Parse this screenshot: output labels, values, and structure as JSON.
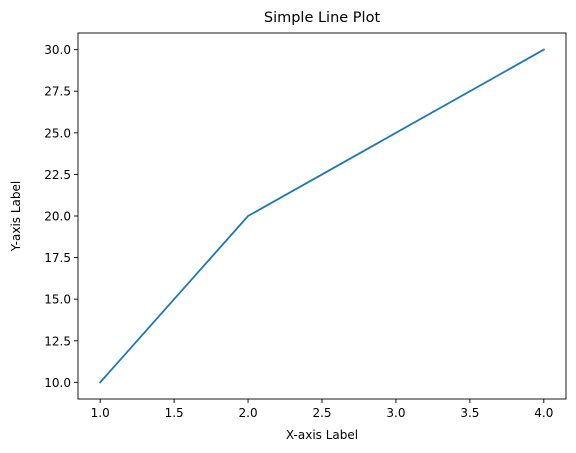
{
  "chart_data": {
    "type": "line",
    "title": "Simple Line Plot",
    "xlabel": "X-axis Label",
    "ylabel": "Y-axis Label",
    "xlim": [
      0.85,
      4.15
    ],
    "ylim": [
      9.0,
      31.0
    ],
    "xticks": [
      1.0,
      1.5,
      2.0,
      2.5,
      3.0,
      3.5,
      4.0
    ],
    "xtick_labels": [
      "1.0",
      "1.5",
      "2.0",
      "2.5",
      "3.0",
      "3.5",
      "4.0"
    ],
    "yticks": [
      10.0,
      12.5,
      15.0,
      17.5,
      20.0,
      22.5,
      25.0,
      27.5,
      30.0
    ],
    "ytick_labels": [
      "10.0",
      "12.5",
      "15.0",
      "17.5",
      "20.0",
      "22.5",
      "25.0",
      "27.5",
      "30.0"
    ],
    "grid": false,
    "series": [
      {
        "x": [
          1,
          2,
          3,
          4
        ],
        "y": [
          10,
          20,
          25,
          30
        ],
        "color": "#1f77b4"
      }
    ]
  }
}
